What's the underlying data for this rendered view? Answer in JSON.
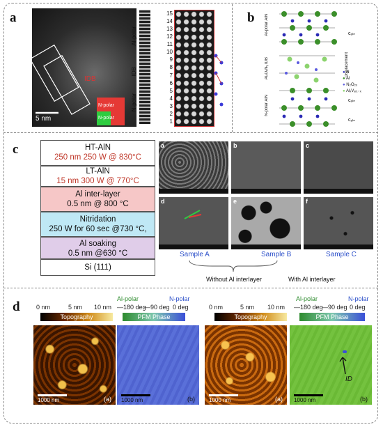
{
  "panels": {
    "a": {
      "label": "a",
      "scalebar": "5 nm",
      "idb": "IDB",
      "polar_top": "Al-polar",
      "polar_mid": "IDB",
      "polar_bot": "N-polar",
      "inset_top": "N-polar",
      "inset_bot": "N-polar",
      "row_numbers": [
        "15",
        "14",
        "13",
        "12",
        "11",
        "10",
        "9",
        "8",
        "7",
        "6",
        "5",
        "4",
        "3",
        "2",
        "1"
      ]
    },
    "b": {
      "label": "b",
      "side_top": "Al-polar AlN",
      "side_mid": "Al₂OₓNᵧ IDB",
      "side_bot": "N-polar AlN",
      "c_top": "cₐₗₙ",
      "displacement": "Displacement",
      "c_mid": "cₐₗₙ",
      "c_bot": "cₐₗₙ",
      "legend": [
        "N",
        "Al",
        "N₂O₂ₓ",
        "AlₓVₐₗ₁₋ₓ"
      ]
    },
    "c": {
      "label": "c",
      "layers": [
        {
          "name": "HT-AlN",
          "detail": "250 nm 250 W @ 830°C",
          "color": "#ffffff"
        },
        {
          "name": "LT-AlN",
          "detail": "15 nm 300 W @ 770°C",
          "color": "#ffffff"
        },
        {
          "name": "Al inter-layer",
          "detail": "0.5 nm @ 800  °C",
          "color": "#f6c7c7"
        },
        {
          "name": "Nitridation",
          "detail": "250 W for 60 sec @730 °C,",
          "color": "#bfe8f5"
        },
        {
          "name": "Al soaking",
          "detail": "0.5 nm  @630 °C",
          "color": "#e0cde9"
        },
        {
          "name": "Si (111)",
          "detail": "",
          "color": "#ffffff"
        }
      ],
      "sem_labels": [
        "a",
        "b",
        "c",
        "d",
        "e",
        "f"
      ],
      "samples": [
        "Sample A",
        "Sample B",
        "Sample C"
      ],
      "without": "Without Al interlayer",
      "with": "With Al interlayer"
    },
    "d": {
      "label": "d",
      "ticks_topo": [
        "0 nm",
        "5 nm",
        "10 nm"
      ],
      "topo_label": "Topography",
      "pfm_polar_left": "Al-polar",
      "pfm_polar_right": "N-polar",
      "pfm_ticks": [
        "—180 deg",
        "—90 deg",
        "0 deg"
      ],
      "pfm_label": "PFM Phase",
      "scale": "1000 nm",
      "sub_a": "(a)",
      "sub_b": "(b)",
      "id": "ID"
    }
  },
  "colors": {
    "topo_dark": "#4a1e00",
    "topo_light": "#f5c542",
    "pfm_blue": "#5a6fd6",
    "pfm_green": "#6fbf3b",
    "sample_blue": "#2b4fc9",
    "red_text": "#c0392b"
  }
}
